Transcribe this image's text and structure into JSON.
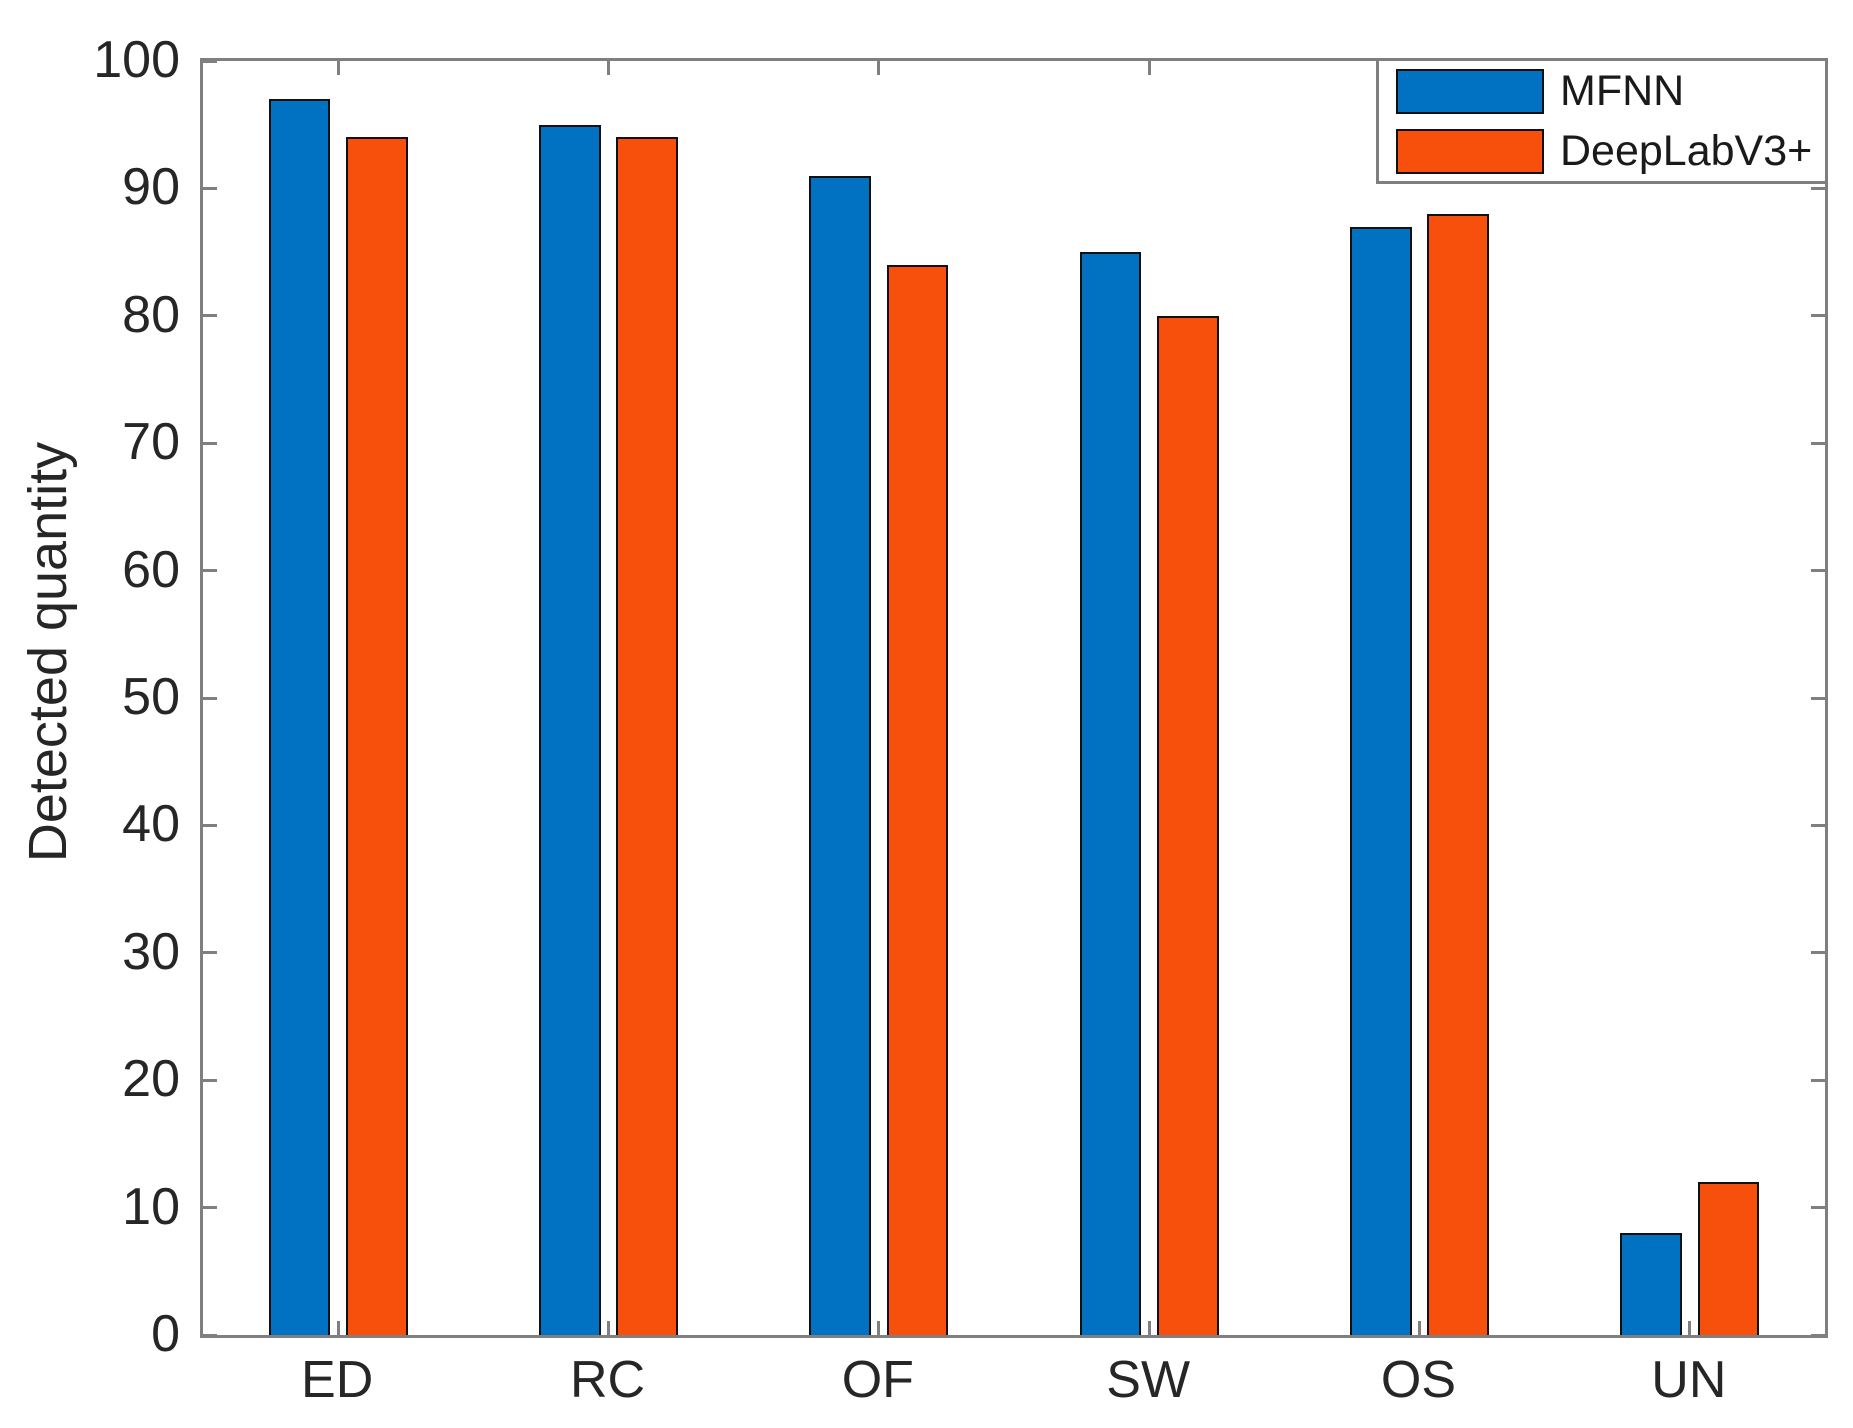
{
  "figure": {
    "background": "#ffffff",
    "axis_color": "#7f7f7f",
    "text_color": "#262626",
    "bar_edge_color": "#101010"
  },
  "chart_data": {
    "type": "bar",
    "title": "",
    "xlabel": "",
    "ylabel": "Detected quantity",
    "categories": [
      "ED",
      "RC",
      "OF",
      "SW",
      "OS",
      "UN"
    ],
    "series": [
      {
        "name": "MFNN",
        "color": "#0072C1",
        "values": [
          97,
          95,
          91,
          85,
          87,
          8
        ]
      },
      {
        "name": "DeepLabV3+",
        "color": "#F7500C",
        "values": [
          94,
          94,
          84,
          80,
          88,
          12
        ]
      }
    ],
    "ylim": [
      0,
      100
    ],
    "yticks": [
      0,
      10,
      20,
      30,
      40,
      50,
      60,
      70,
      80,
      90,
      100
    ],
    "grid": false,
    "legend_position": "top-right"
  }
}
